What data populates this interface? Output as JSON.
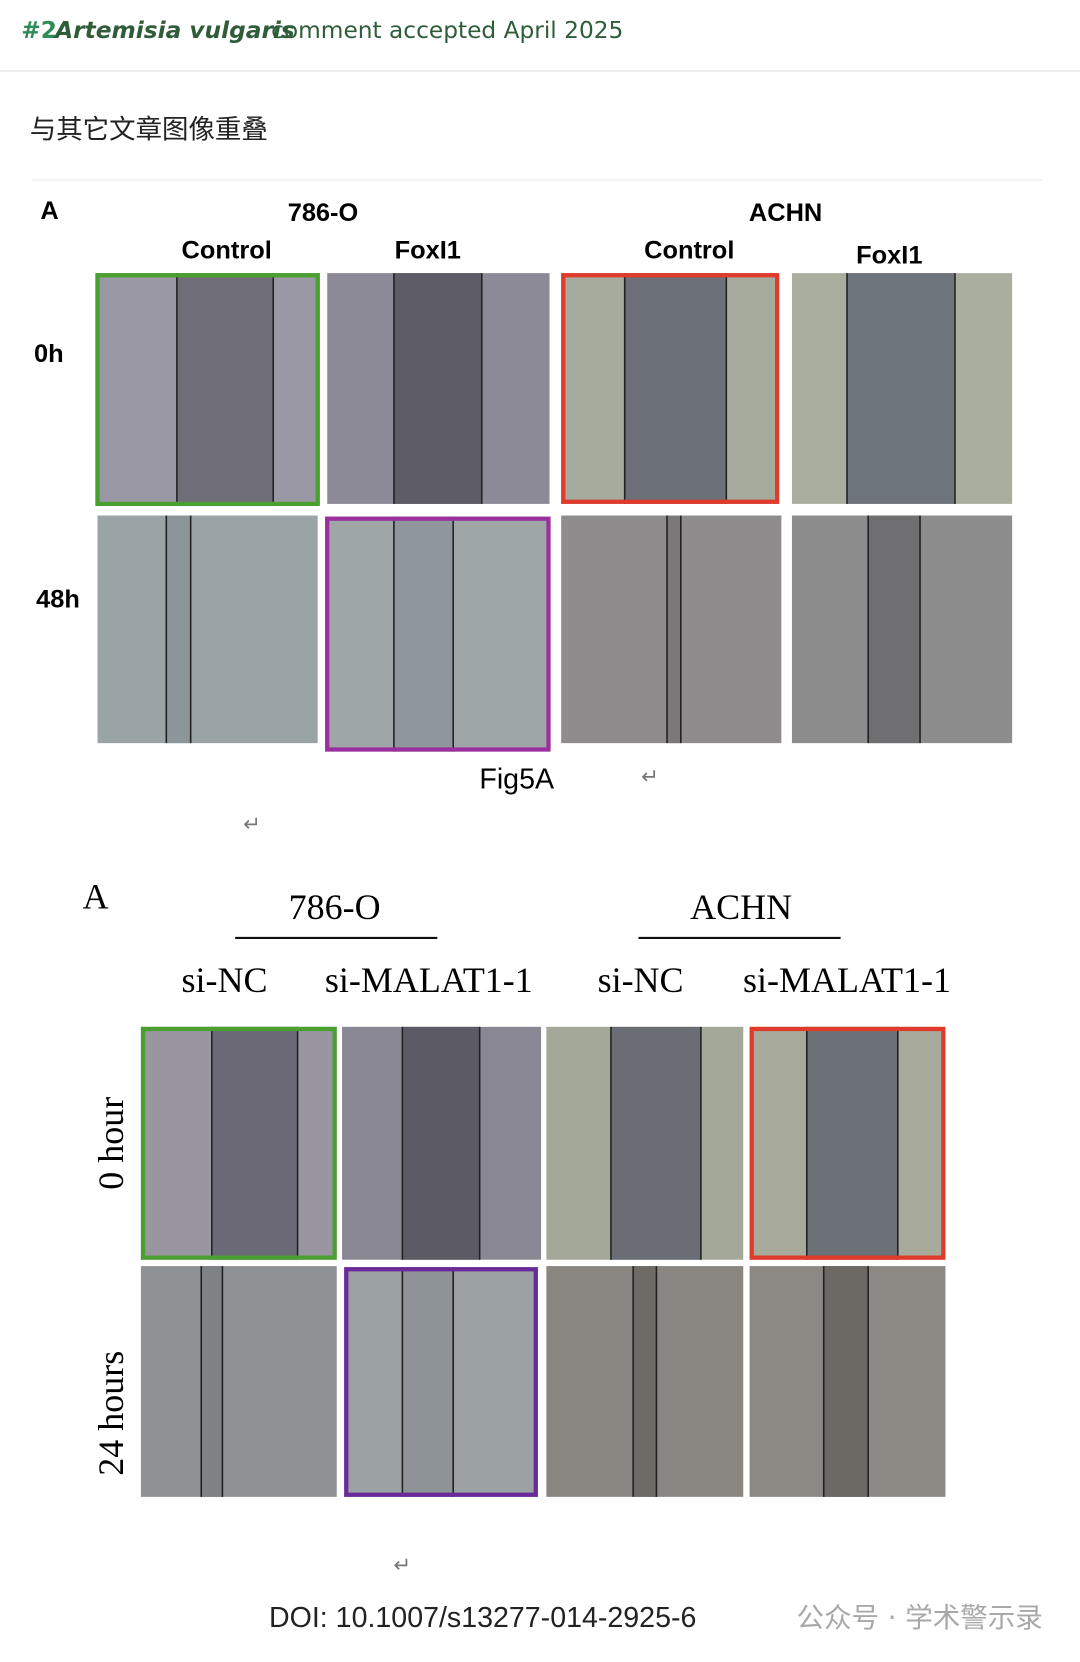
{
  "header": {
    "number": "#2",
    "species": "Artemisia vulgaris",
    "status": "comment accepted April 2025"
  },
  "note": "与其它文章图像重叠",
  "figure_1": {
    "panel_letter": "A",
    "cell_lines": [
      "786-O",
      "ACHN"
    ],
    "columns": [
      "Control",
      "FoxI1",
      "Control",
      "FoxI1"
    ],
    "rows": [
      "0h",
      "48h"
    ],
    "caption": "Fig5A",
    "return_marks": [
      "↵",
      "↵"
    ]
  },
  "figure_2": {
    "panel_letter": "A",
    "cell_lines": [
      "786-O",
      "ACHN"
    ],
    "columns": [
      "si-NC",
      "si-MALAT1-1",
      "si-NC",
      "si-MALAT1-1"
    ],
    "rows": [
      "0 hour",
      "24 hours"
    ],
    "return_mark": "↵"
  },
  "doi": "DOI:  10.1007/s13277-014-2925-6",
  "watermark": "公众号 · 学术警示录"
}
